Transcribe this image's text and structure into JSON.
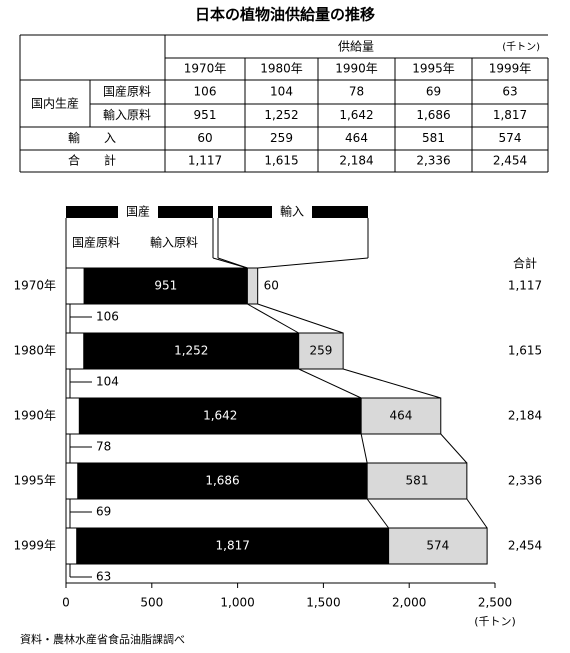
{
  "title": "日本の植物油供給量の推移",
  "table": {
    "header": "供給量",
    "unit": "(千トン)",
    "columns": [
      "1970年",
      "1980年",
      "1990年",
      "1995年",
      "1999年"
    ],
    "group": "国内生産",
    "rows": [
      {
        "label": "国産原料",
        "cells": [
          "106",
          "104",
          "78",
          "69",
          "63"
        ]
      },
      {
        "label": "輸入原料",
        "cells": [
          "951",
          "1,252",
          "1,642",
          "1,686",
          "1,817"
        ]
      },
      {
        "label": "輸　　入",
        "cells": [
          "60",
          "259",
          "464",
          "581",
          "574"
        ]
      },
      {
        "label": "合　　計",
        "cells": [
          "1,117",
          "1,615",
          "2,184",
          "2,336",
          "2,454"
        ]
      }
    ]
  },
  "chart_data": {
    "type": "bar",
    "orientation": "horizontal",
    "stacked": true,
    "categories": [
      "1970年",
      "1980年",
      "1990年",
      "1995年",
      "1999年"
    ],
    "legend_group": "国産",
    "series": [
      {
        "name": "国産原料",
        "color": "#ffffff",
        "values": [
          106,
          104,
          78,
          69,
          63
        ]
      },
      {
        "name": "輸入原料",
        "color": "#000000",
        "values": [
          951,
          1252,
          1642,
          1686,
          1817
        ],
        "value_labels": [
          "951",
          "1,252",
          "1,642",
          "1,686",
          "1,817"
        ]
      },
      {
        "name": "輸入",
        "color": "#d9d9d9",
        "values": [
          60,
          259,
          464,
          581,
          574
        ]
      }
    ],
    "totals": {
      "label": "合計",
      "values": [
        1117,
        1615,
        2184,
        2336,
        2454
      ],
      "value_labels": [
        "1,117",
        "1,615",
        "2,184",
        "2,336",
        "2,454"
      ]
    },
    "xlim": [
      0,
      2500
    ],
    "xticks": [
      0,
      500,
      {
        "value": 1000,
        "label": "1,000"
      },
      {
        "value": 1500,
        "label": "1,500"
      },
      {
        "value": 2000,
        "label": "2,000"
      },
      {
        "value": 2500,
        "label": "2,500"
      }
    ],
    "xlabel": "(千トン)",
    "grid": false
  },
  "source": "資料・農林水産省食品油脂課調べ"
}
